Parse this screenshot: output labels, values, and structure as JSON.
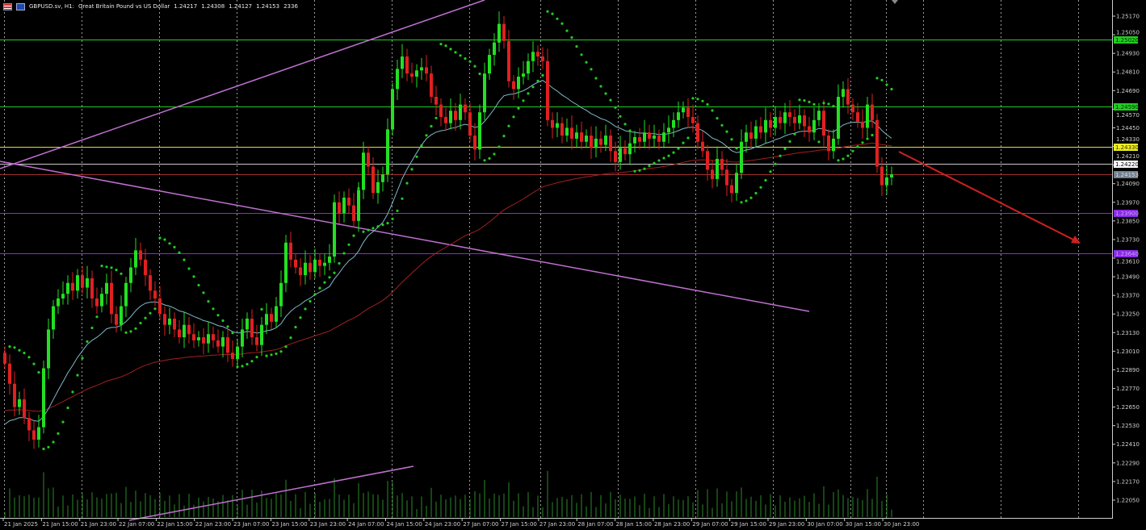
{
  "header": {
    "symbol": "GBPUSD.sv, H1:",
    "description": "Great Britain Pound vs US Dollar",
    "open": "1.24217",
    "high": "1.24308",
    "low": "1.24127",
    "close": "1.24153",
    "volume": "2336",
    "icons": [
      "flag-icon",
      "ohlc-chart-icon"
    ]
  },
  "colors": {
    "background": "#000000",
    "bull": "#22e022",
    "bear": "#e02020",
    "sar": "#22cc22",
    "fast_ma": "#7fb8c8",
    "slow_ma": "#a02020",
    "trendline": "#c070d0",
    "arrow": "#d02020"
  },
  "chart_data": {
    "type": "candlestick",
    "symbol": "GBPUSD.sv",
    "timeframe": "H1",
    "ylim": [
      1.22,
      1.2525
    ],
    "y_ticks": [
      "1.25170",
      "1.25050",
      "1.24930",
      "1.24810",
      "1.24690",
      "1.24570",
      "1.24450",
      "1.24330",
      "1.24210",
      "1.24090",
      "1.23970",
      "1.23850",
      "1.23730",
      "1.23610",
      "1.23490",
      "1.23370",
      "1.23250",
      "1.23130",
      "1.23010",
      "1.22890",
      "1.22770",
      "1.22650",
      "1.22530",
      "1.22410",
      "1.22290",
      "1.22170",
      "1.22050"
    ],
    "x_ticks": [
      "21 Jan 2025",
      "21 Jan 15:00",
      "21 Jan 23:00",
      "22 Jan 07:00",
      "22 Jan 15:00",
      "22 Jan 23:00",
      "23 Jan 07:00",
      "23 Jan 15:00",
      "23 Jan 23:00",
      "24 Jan 07:00",
      "24 Jan 15:00",
      "24 Jan 23:00",
      "27 Jan 07:00",
      "27 Jan 15:00",
      "27 Jan 23:00",
      "28 Jan 07:00",
      "28 Jan 15:00",
      "28 Jan 23:00",
      "29 Jan 07:00",
      "29 Jan 15:00",
      "29 Jan 23:00",
      "30 Jan 07:00",
      "30 Jan 15:00",
      "30 Jan 23:00"
    ],
    "closes": [
      1.2293,
      1.228,
      1.2265,
      1.227,
      1.2258,
      1.225,
      1.2244,
      1.2252,
      1.229,
      1.2315,
      1.233,
      1.2335,
      1.2338,
      1.2345,
      1.234,
      1.235,
      1.2342,
      1.2348,
      1.2335,
      1.233,
      1.2338,
      1.2345,
      1.2325,
      1.2318,
      1.233,
      1.2345,
      1.2355,
      1.2366,
      1.236,
      1.235,
      1.234,
      1.2335,
      1.2325,
      1.2318,
      1.2322,
      1.2315,
      1.231,
      1.2318,
      1.2312,
      1.2308,
      1.231,
      1.2306,
      1.2312,
      1.2308,
      1.2304,
      1.231,
      1.23,
      1.2296,
      1.2304,
      1.2315,
      1.2322,
      1.231,
      1.2305,
      1.2318,
      1.2325,
      1.232,
      1.233,
      1.2345,
      1.2371,
      1.236,
      1.2355,
      1.235,
      1.2358,
      1.2352,
      1.236,
      1.2356,
      1.2358,
      1.2362,
      1.2397,
      1.239,
      1.24,
      1.2395,
      1.2385,
      1.2405,
      1.2429,
      1.242,
      1.2403,
      1.241,
      1.2415,
      1.2444,
      1.247,
      1.2483,
      1.2491,
      1.248,
      1.2478,
      1.2482,
      1.2484,
      1.248,
      1.2465,
      1.246,
      1.2452,
      1.2448,
      1.2456,
      1.245,
      1.246,
      1.2455,
      1.244,
      1.2431,
      1.2455,
      1.248,
      1.2492,
      1.25,
      1.2512,
      1.2501,
      1.2475,
      1.247,
      1.2478,
      1.248,
      1.2488,
      1.2494,
      1.2491,
      1.2488,
      1.245,
      1.2445,
      1.2448,
      1.244,
      1.2445,
      1.2438,
      1.2442,
      1.2436,
      1.244,
      1.2432,
      1.2438,
      1.2434,
      1.244,
      1.243,
      1.2423,
      1.2432,
      1.2428,
      1.2435,
      1.2439,
      1.2436,
      1.2442,
      1.2438,
      1.244,
      1.2436,
      1.2442,
      1.2445,
      1.245,
      1.2455,
      1.2458,
      1.2452,
      1.2448,
      1.2436,
      1.243,
      1.2418,
      1.2412,
      1.2425,
      1.2418,
      1.2408,
      1.2403,
      1.2416,
      1.2436,
      1.2442,
      1.2438,
      1.2446,
      1.2442,
      1.245,
      1.2445,
      1.2452,
      1.2448,
      1.2455,
      1.2452,
      1.2448,
      1.2453,
      1.2446,
      1.2442,
      1.245,
      1.2456,
      1.244,
      1.243,
      1.2438,
      1.2465,
      1.247,
      1.246,
      1.2455,
      1.2449,
      1.2445,
      1.246,
      1.245,
      1.242,
      1.2408,
      1.2413,
      1.2415
    ],
    "indicators": [
      "fast moving average",
      "slow moving average",
      "parabolic SAR",
      "volumes"
    ],
    "horizontal_levels": [
      {
        "price": "1.25020",
        "color": "#22cc22",
        "label_bg": "#22cc22",
        "label_fg": "#003300"
      },
      {
        "price": "1.24590",
        "color": "#22cc22",
        "label_bg": "#22cc22",
        "label_fg": "#003300"
      },
      {
        "price": "1.24330",
        "color": "#dddd44",
        "label_bg": "#eeee22",
        "label_fg": "#333300"
      },
      {
        "price": "1.24220",
        "color": "#c8c8c8",
        "label_bg": "#ffffff",
        "label_fg": "#000000"
      },
      {
        "price": "1.24153",
        "color": "#a03030",
        "label_bg": "#708090",
        "label_fg": "#dddddd"
      },
      {
        "price": "1.23900",
        "color": "#8a2be2",
        "label_bg": "#8a2be2",
        "label_fg": "#c9a0ff"
      },
      {
        "price": "1.23640",
        "color": "#8a2be2",
        "label_bg": "#8a2be2",
        "label_fg": "#c9a0ff"
      }
    ]
  }
}
